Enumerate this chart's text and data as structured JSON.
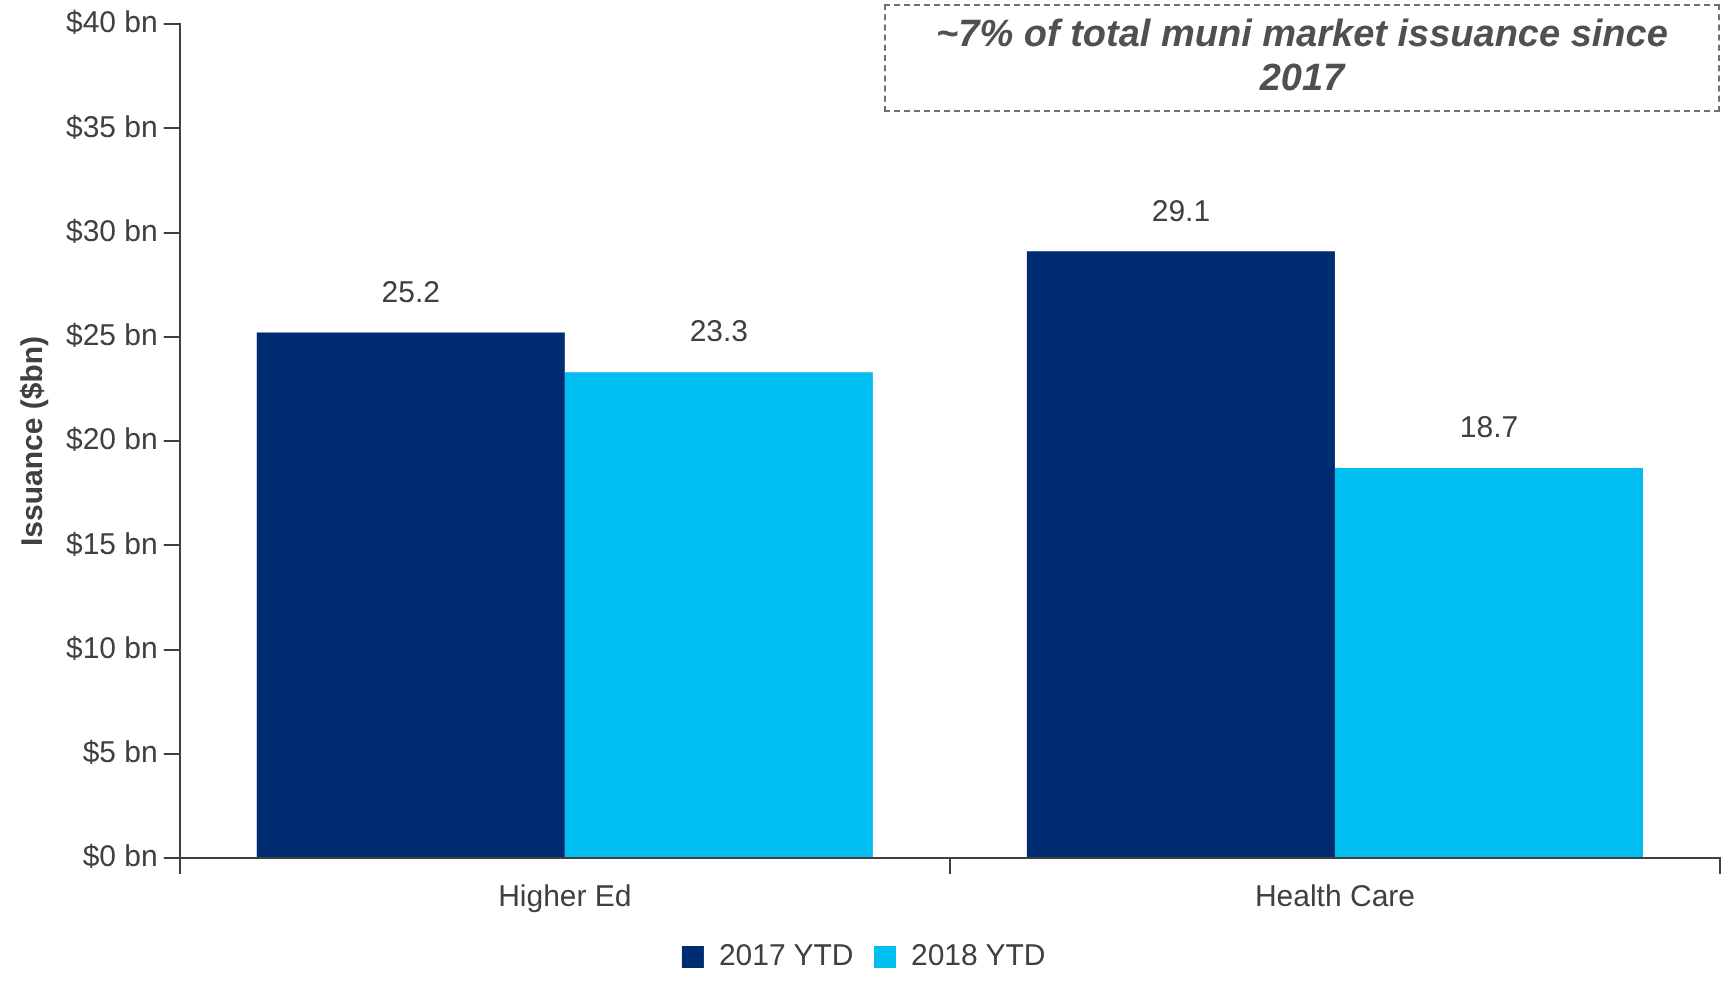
{
  "chart_data": {
    "type": "bar",
    "ylabel": "Issuance ($bn)",
    "categories": [
      "Higher Ed",
      "Health Care"
    ],
    "series": [
      {
        "name": "2017 YTD",
        "color": "#002d72",
        "values": [
          25.2,
          29.1
        ]
      },
      {
        "name": "2018 YTD",
        "color": "#00bff0",
        "values": [
          23.3,
          18.7
        ]
      }
    ],
    "ylim": [
      0,
      40
    ],
    "yticks": [
      {
        "value": 0,
        "label": "$0 bn"
      },
      {
        "value": 5,
        "label": "$5 bn"
      },
      {
        "value": 10,
        "label": "$10 bn"
      },
      {
        "value": 15,
        "label": "$15 bn"
      },
      {
        "value": 20,
        "label": "$20 bn"
      },
      {
        "value": 25,
        "label": "$25 bn"
      },
      {
        "value": 30,
        "label": "$30 bn"
      },
      {
        "value": 35,
        "label": "$35 bn"
      },
      {
        "value": 40,
        "label": "$40 bn"
      }
    ],
    "grid": false,
    "legend": "bottom",
    "data_labels": true,
    "annotations": [
      "~7% of total muni market issuance since 2017"
    ]
  }
}
